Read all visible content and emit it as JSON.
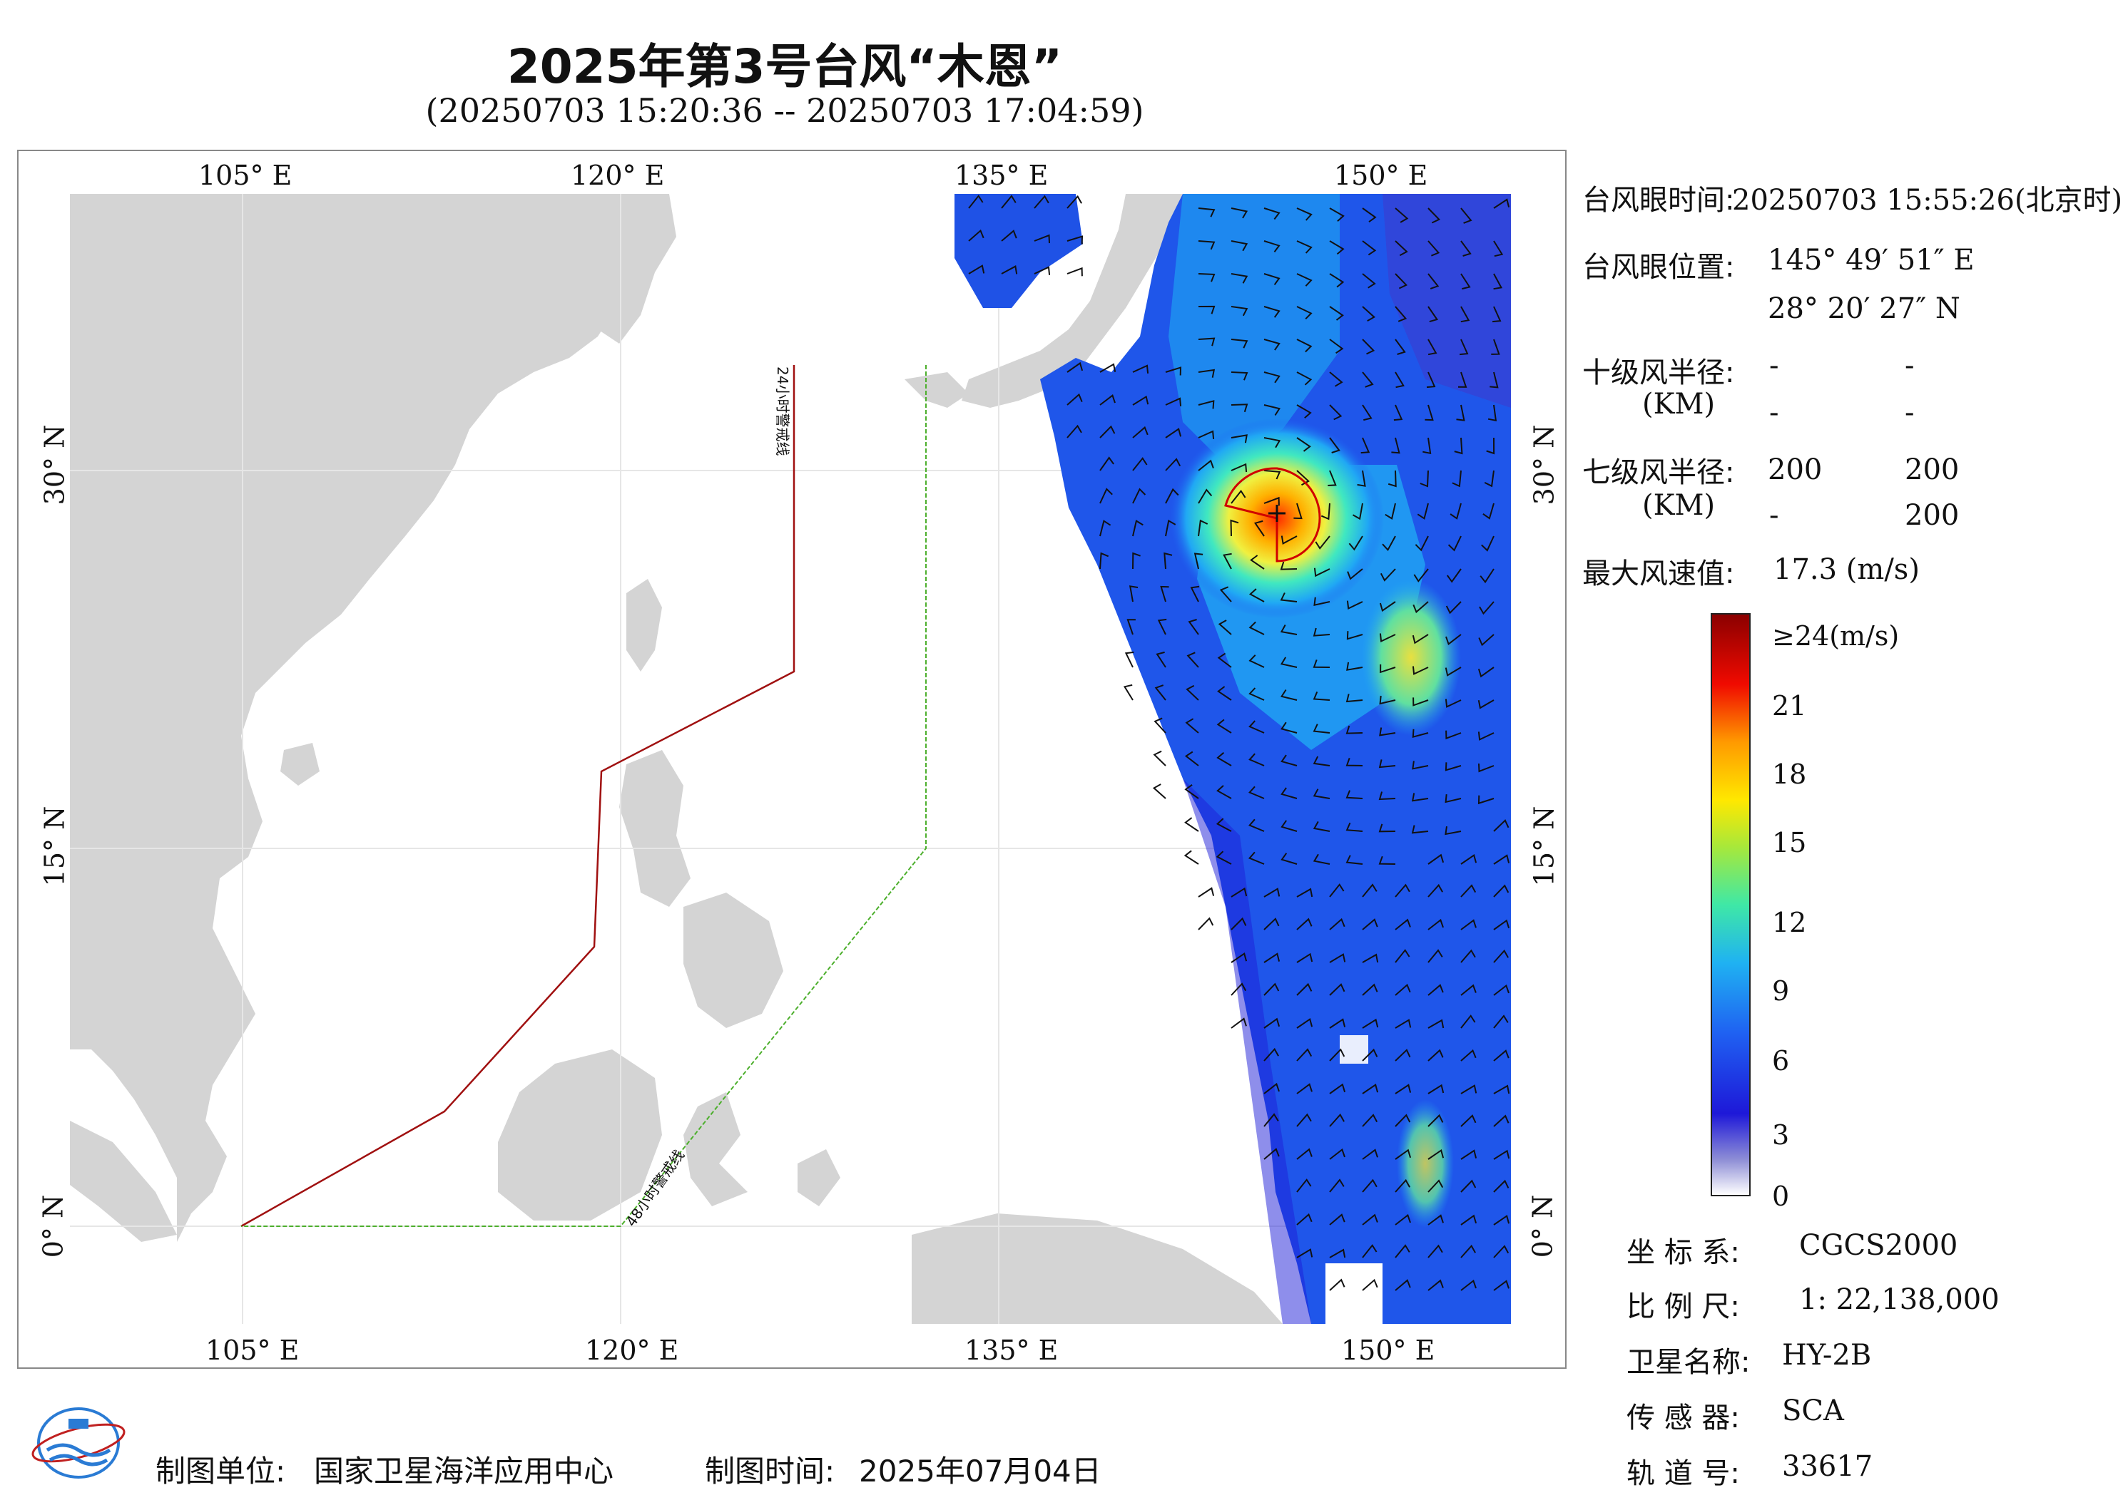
{
  "title": "2025年第3号台风“木恩”",
  "subtitle": "(20250703 15:20:36 -- 20250703 17:04:59)",
  "lon_ticks": [
    "105° E",
    "120° E",
    "135° E",
    "150° E"
  ],
  "lat_ticks": [
    "30° N",
    "15° N",
    "0° N"
  ],
  "warning_lines": {
    "line24": "24小时警戒线",
    "line48": "48小时警戒线"
  },
  "info": {
    "eye_time_label": "台风眼时间:",
    "eye_time_value": "20250703 15:55:26(北京时)",
    "eye_pos_label": "台风眼位置:",
    "eye_lon": "145° 49′ 51″ E",
    "eye_lat": "28° 20′ 27″ N",
    "r10_label": "十级风半径:",
    "r10_unit": "(KM)",
    "r10_values": [
      "-",
      "-",
      "-",
      "-"
    ],
    "r7_label": "七级风半径:",
    "r7_unit": "(KM)",
    "r7_values": [
      "200",
      "200",
      "-",
      "200"
    ],
    "maxwind_label": "最大风速值:",
    "maxwind_value": "17.3 (m/s)"
  },
  "colorbar": {
    "labels": [
      "≥24(m/s)",
      "21",
      "18",
      "15",
      "12",
      "9",
      "6",
      "3",
      "0"
    ],
    "min": 0,
    "max": 24,
    "unit": "m/s"
  },
  "meta": {
    "crs_label": "坐 标 系:",
    "crs_value": "CGCS2000",
    "scale_label": "比 例 尺:",
    "scale_value": "1: 22,138,000",
    "sat_label": "卫星名称:",
    "sat_value": "HY-2B",
    "sensor_label": "传 感 器:",
    "sensor_value": "SCA",
    "orbit_label": "轨 道 号:",
    "orbit_value": "33617"
  },
  "footer": {
    "unit_label": "制图单位:",
    "unit_value": "国家卫星海洋应用中心",
    "time_label": "制图时间:",
    "time_value": "2025年07月04日"
  },
  "colors": {
    "land": "#d4d4d4",
    "line24": "#a01010",
    "line48": "#4caf2c",
    "eye": "#d00000"
  }
}
